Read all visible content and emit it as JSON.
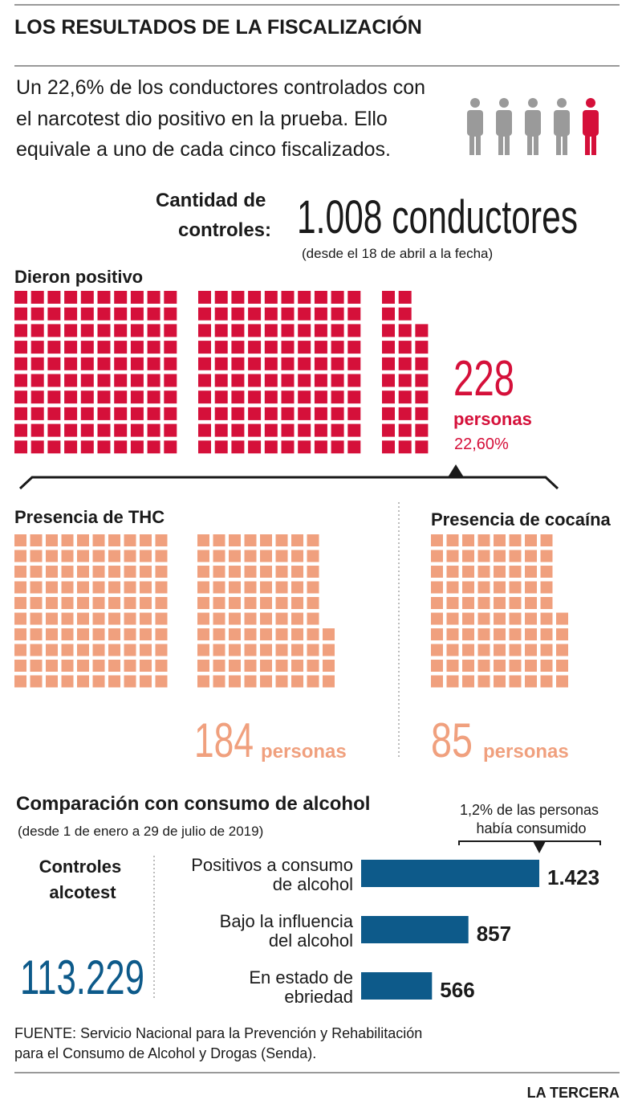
{
  "header": {
    "title": "LOS RESULTADOS DE LA FISCALIZACIÓN"
  },
  "summary": {
    "lines": [
      "Un 22,6% de los conductores controlados con",
      "el narcotest dio positivo en la prueba. Ello",
      "equivale a uno de cada cinco fiscalizados."
    ]
  },
  "controls": {
    "label_lines": [
      "Cantidad de",
      "controles:"
    ],
    "value": "1.008 conductores",
    "note": "(desde el 18 de abril a la fecha)"
  },
  "positive": {
    "title": "Dieron positivo",
    "count": 228,
    "unit": "personas",
    "percent": {
      "value": 22.6,
      "label": "22,60%"
    },
    "color": "#d5103a"
  },
  "thc": {
    "title": "Presencia de THC",
    "count": 184,
    "unit": "personas",
    "color": "#f0a07e"
  },
  "cocaine": {
    "title": "Presencia de cocaína",
    "count": 85,
    "unit": "personas",
    "color": "#f0a07e"
  },
  "alcohol": {
    "title": "Comparación con consumo de alcohol",
    "period": "(desde 1 de enero a 29 de julio de 2019)",
    "callout_lines": [
      "1,2% de las personas",
      "había consumido"
    ],
    "tests_label_lines": [
      "Controles",
      "alcotest"
    ],
    "tests_value": "113.229"
  },
  "chart_data": {
    "type": "hbar",
    "categories": [
      [
        "Positivos a consumo",
        "de alcohol"
      ],
      [
        "Bajo la influencia",
        "del alcohol"
      ],
      [
        "En estado de",
        "ebriedad"
      ]
    ],
    "values": [
      1423,
      857,
      566
    ],
    "value_labels": [
      "1.423",
      "857",
      "566"
    ],
    "color": "#0d5a8a"
  },
  "footer": {
    "source_lines": [
      "FUENTE: Servicio Nacional para la Prevención y Rehabilitación",
      "para el Consumo de Alcohol y Drogas (Senda)."
    ],
    "brand": "LA TERCERA"
  }
}
